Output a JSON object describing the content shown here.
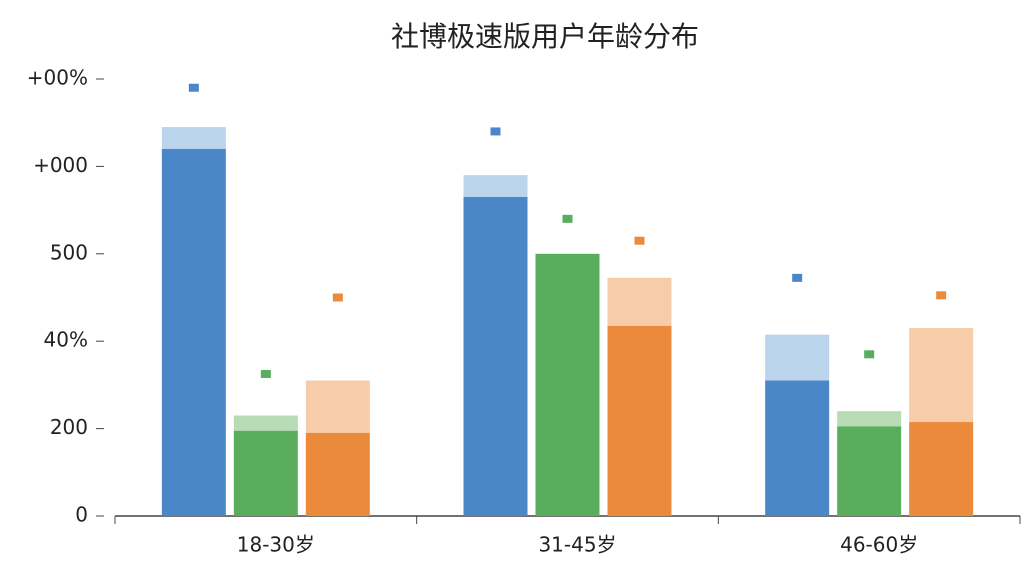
{
  "chart_data": {
    "type": "bar",
    "title": "社博极速版用户年龄分布",
    "categories": [
      "18-30岁",
      "31-45岁",
      "46-60岁"
    ],
    "ylim": [
      0,
      1000
    ],
    "yticks": [
      0,
      200,
      {
        "value": 400,
        "label": "40%"
      },
      {
        "value": 600,
        "label": "500"
      },
      {
        "value": 800,
        "label": "+000"
      },
      {
        "value": 1000,
        "label": "+00%"
      }
    ],
    "series": [
      {
        "color": "#4a86c8",
        "light_color": "#bcd3ec",
        "values": [
          840,
          730,
          310
        ],
        "light_values": [
          50,
          50,
          105
        ],
        "marker_values": [
          980,
          880,
          545
        ]
      },
      {
        "color": "#5aad5c",
        "light_color": "#b7dcb5",
        "values": [
          195,
          600,
          205
        ],
        "light_values": [
          35,
          0,
          35
        ],
        "marker_values": [
          325,
          680,
          370
        ]
      },
      {
        "color": "#ec8a3c",
        "light_color": "#f6cda8",
        "values": [
          190,
          435,
          215
        ],
        "light_values": [
          120,
          110,
          215
        ],
        "marker_values": [
          500,
          630,
          505
        ]
      }
    ]
  }
}
